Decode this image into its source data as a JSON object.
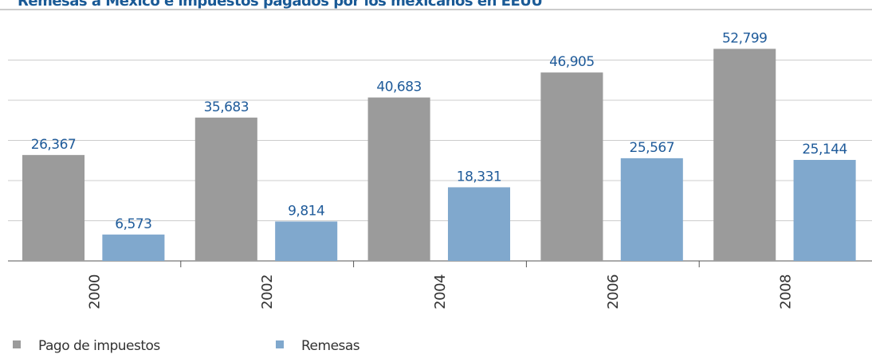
{
  "chart_data": {
    "type": "bar",
    "title": "Remesas a México e impuestos pagados por los mexicanos en EEUU",
    "categories": [
      "2000",
      "2002",
      "2004",
      "2006",
      "2008"
    ],
    "series": [
      {
        "name": "Pago de impuestos",
        "color": "#9b9b9b",
        "values": [
          26367,
          35683,
          40683,
          46905,
          52799
        ],
        "value_labels": [
          "26,367",
          "35,683",
          "40,683",
          "46,905",
          "52,799"
        ]
      },
      {
        "name": "Remesas",
        "color": "#80a8cd",
        "values": [
          6573,
          9814,
          18331,
          25567,
          25144
        ],
        "value_labels": [
          "6,573",
          "9,814",
          "18,331",
          "25,567",
          "25,144"
        ]
      }
    ],
    "ylim": [
      0,
      60000
    ],
    "yticks": [
      0,
      10000,
      20000,
      30000,
      40000,
      50000
    ],
    "grid": true
  }
}
